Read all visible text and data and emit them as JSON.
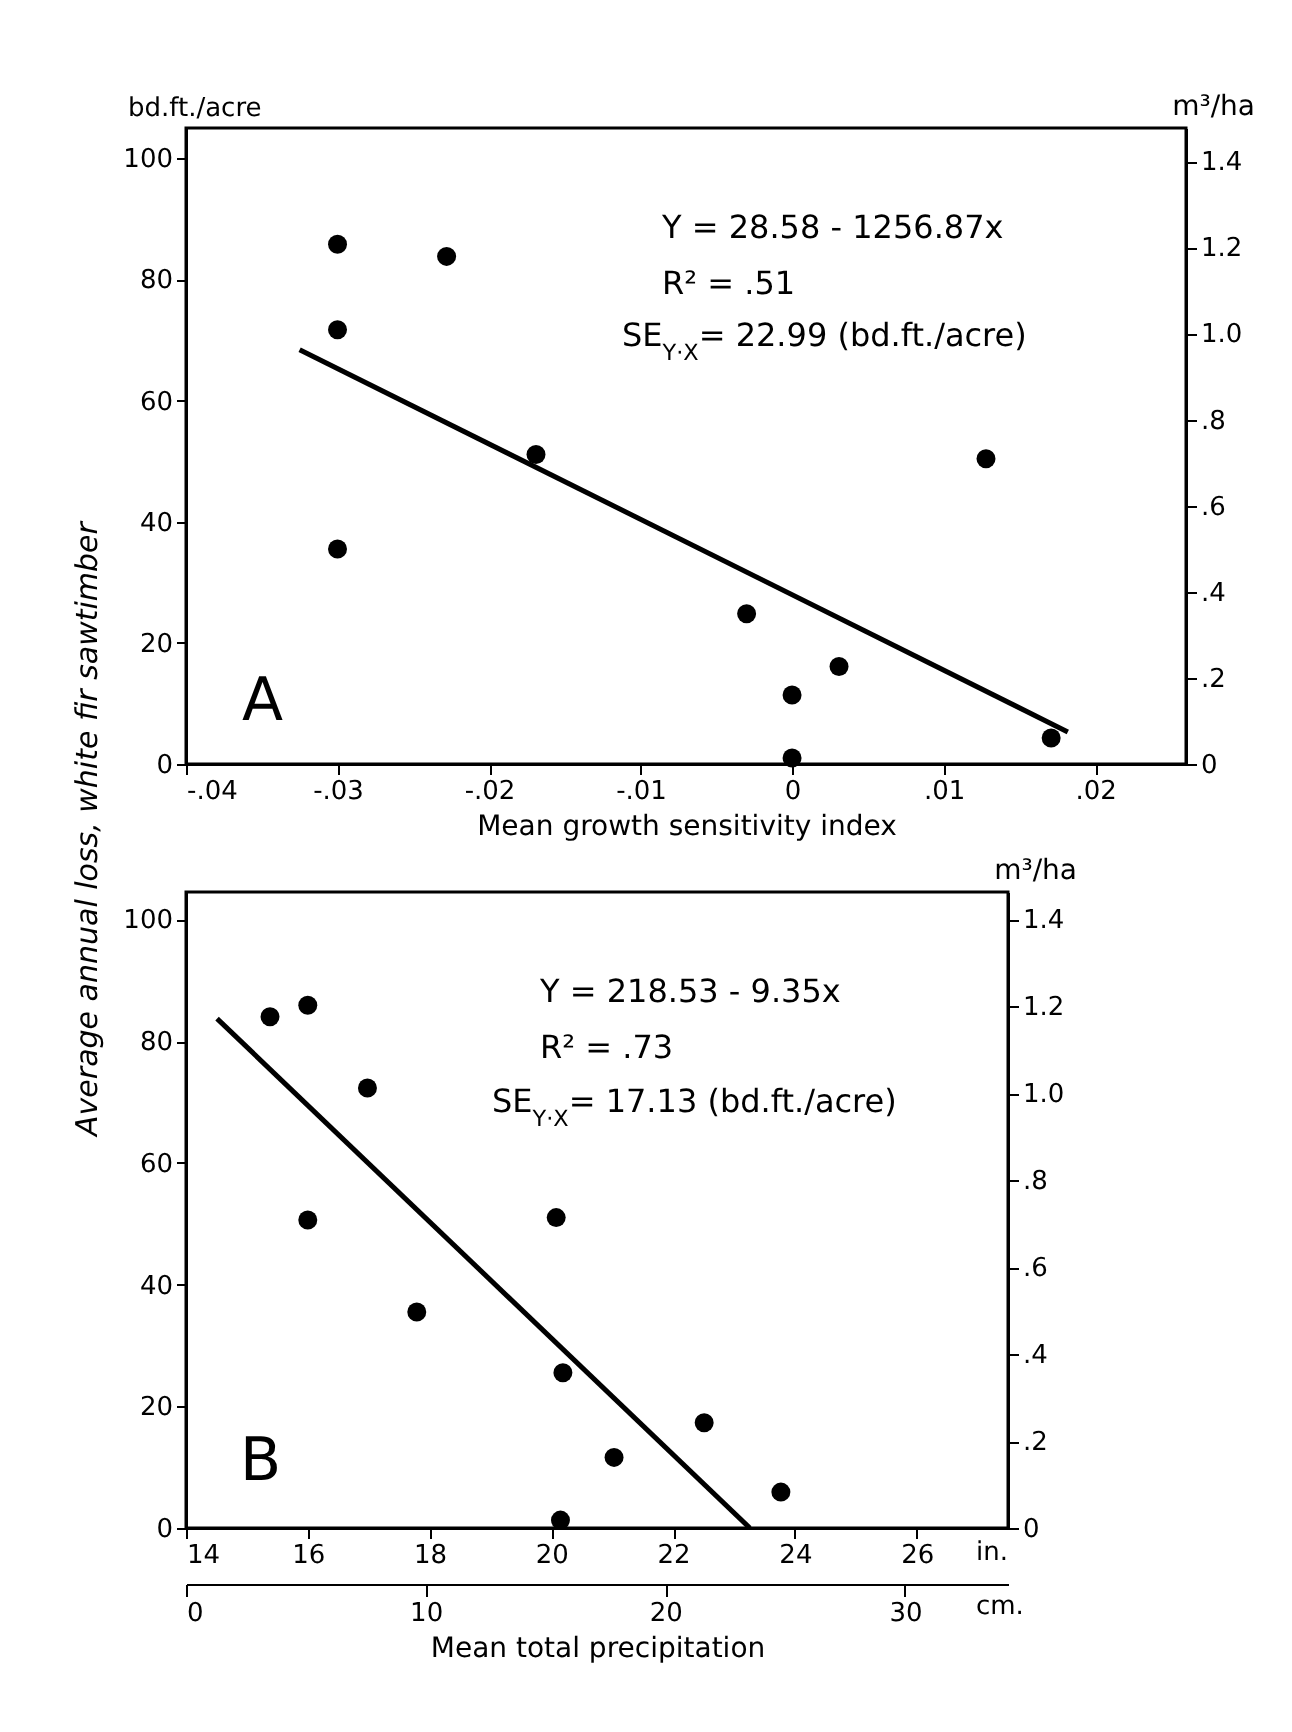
{
  "chart_data": [
    {
      "type": "scatter",
      "xlabel": "Mean growth sensitivity index",
      "ylabel": "Average annual loss, white fir sawtimber",
      "y2label": "m³/ha",
      "xlim": [
        -0.04,
        0.026
      ],
      "xticks": [
        {
          "value": -0.04,
          "label": "-.04"
        },
        {
          "value": -0.03,
          "label": "-.03"
        },
        {
          "value": -0.02,
          "label": "-.02"
        },
        {
          "value": -0.01,
          "label": "-.01"
        },
        0,
        {
          "value": 0.01,
          "label": ".01"
        },
        {
          "value": 0.02,
          "label": ".02"
        }
      ],
      "ylim": [
        0,
        105
      ],
      "yticks": [
        0,
        20,
        40,
        60,
        80,
        100
      ],
      "y2lim": [
        0,
        1.477
      ],
      "y2ticks": [
        0,
        {
          "value": 0.2,
          "label": ".2"
        },
        {
          "value": 0.4,
          "label": ".4"
        },
        {
          "value": 0.6,
          "label": ".6"
        },
        {
          "value": 0.8,
          "label": ".8"
        },
        {
          "value": 1.0,
          "label": "1.0"
        },
        1.2,
        1.4
      ],
      "annotations": [
        "bd.ft./acre",
        "Y = 28.58 - 1256.87x",
        "R² = .51",
        "SE$_{Y·X}$= 22.99 (bd.ft./acre)",
        "A"
      ],
      "series": [
        {
          "type": "scatter",
          "marker": "circle",
          "color": "#000000",
          "x": [
            -0.03,
            -0.03,
            -0.03,
            -0.0228,
            -0.0169,
            -0.003,
            0.0,
            0.0,
            0.0031,
            0.0128,
            0.0171
          ],
          "values": [
            85.8,
            71.7,
            35.5,
            83.8,
            51.1,
            24.8,
            11.4,
            1,
            16.1,
            50.4,
            4.3
          ]
        },
        {
          "type": "line",
          "color": "#000000",
          "x": [
            -0.0325,
            0.0182
          ],
          "values": [
            68.4,
            5.3
          ]
        }
      ]
    },
    {
      "type": "scatter",
      "xlabel": "Mean total precipitation",
      "y2label": "m³/ha",
      "xlim": [
        14,
        27.5
      ],
      "xticks": [
        14,
        16,
        18,
        20,
        22,
        24,
        26
      ],
      "x2lim": [
        0,
        34.3
      ],
      "x2ticks": [
        0,
        10,
        20,
        30
      ],
      "ylim": [
        0,
        104.5
      ],
      "yticks": [
        0,
        20,
        40,
        60,
        80,
        100
      ],
      "y2lim": [
        0,
        1.463
      ],
      "y2ticks": [
        0,
        {
          "value": 0.2,
          "label": ".2"
        },
        {
          "value": 0.4,
          "label": ".4"
        },
        {
          "value": 0.6,
          "label": ".6"
        },
        {
          "value": 0.8,
          "label": ".8"
        },
        {
          "value": 1.0,
          "label": "1.0"
        },
        1.2,
        1.4
      ],
      "annotations": [
        "Y = 218.53 - 9.35x",
        "R² = .73",
        "SE$_{Y·X}$= 17.13 (bd.ft./acre)",
        "B",
        "in.",
        "cm."
      ],
      "series": [
        {
          "type": "scatter",
          "marker": "circle",
          "color": "#000000",
          "x": [
            15.38,
            16.0,
            16.98,
            16.0,
            17.79,
            20.08,
            20.19,
            20.15,
            21.03,
            22.51,
            23.77
          ],
          "values": [
            84.0,
            85.9,
            72.3,
            50.6,
            35.5,
            51.0,
            25.5,
            1.3,
            11.6,
            17.3,
            5.9
          ]
        },
        {
          "type": "line",
          "color": "#000000",
          "x": [
            14.51,
            23.26
          ],
          "values": [
            83.7,
            0
          ]
        }
      ]
    }
  ]
}
